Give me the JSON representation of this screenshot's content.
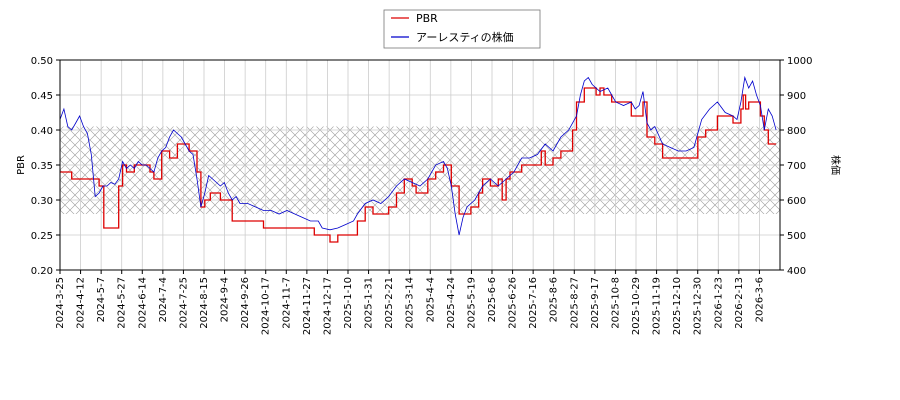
{
  "chart_data": {
    "type": "line",
    "legend_position": "top-center",
    "grid": true,
    "band": {
      "from": 0.28,
      "to": 0.405,
      "axis": "left"
    },
    "y_left": {
      "label": "PBR",
      "range": [
        0.2,
        0.5
      ],
      "ticks": [
        "0.20",
        "0.25",
        "0.30",
        "0.35",
        "0.40",
        "0.45",
        "0.50"
      ]
    },
    "y_right": {
      "label": "株価",
      "range": [
        400,
        1000
      ],
      "ticks": [
        "400",
        "500",
        "600",
        "700",
        "800",
        "900",
        "1000"
      ]
    },
    "x_ticks": [
      "2024-3-25",
      "2024-4-12",
      "2024-5-7",
      "2024-5-27",
      "2024-6-14",
      "2024-7-4",
      "2024-7-25",
      "2024-8-15",
      "2024-9-4",
      "2024-9-26",
      "2024-10-17",
      "2024-11-7",
      "2024-11-27",
      "2024-12-17",
      "2025-1-10",
      "2025-1-31",
      "2025-2-21",
      "2025-3-14",
      "2025-4-4",
      "2025-4-24",
      "2025-5-19",
      "2025-6-6",
      "2025-6-26",
      "2025-7-16",
      "2025-8-6",
      "2025-8-27",
      "2025-9-17",
      "2025-10-8",
      "2025-10-29",
      "2025-11-19",
      "2025-12-10",
      "2025-12-30",
      "2026-1-23",
      "2026-2-13",
      "2026-3-6"
    ],
    "series": [
      {
        "name": "PBR",
        "color": "#dd0000",
        "axis": "left",
        "points": [
          [
            0,
            0.34
          ],
          [
            1.5,
            0.33
          ],
          [
            4,
            0.33
          ],
          [
            5,
            0.32
          ],
          [
            5.6,
            0.26
          ],
          [
            7.5,
            0.32
          ],
          [
            8.0,
            0.35
          ],
          [
            8.5,
            0.34
          ],
          [
            9.5,
            0.35
          ],
          [
            11.5,
            0.34
          ],
          [
            12.0,
            0.33
          ],
          [
            13.0,
            0.37
          ],
          [
            14.0,
            0.36
          ],
          [
            15.0,
            0.38
          ],
          [
            16.5,
            0.37
          ],
          [
            17.5,
            0.34
          ],
          [
            18.0,
            0.29
          ],
          [
            18.5,
            0.3
          ],
          [
            19.2,
            0.31
          ],
          [
            20.5,
            0.3
          ],
          [
            22.0,
            0.27
          ],
          [
            25.0,
            0.27
          ],
          [
            26.0,
            0.26
          ],
          [
            29.0,
            0.26
          ],
          [
            32.0,
            0.26
          ],
          [
            32.5,
            0.25
          ],
          [
            34.0,
            0.25
          ],
          [
            34.5,
            0.24
          ],
          [
            35.0,
            0.24
          ],
          [
            35.5,
            0.25
          ],
          [
            37.0,
            0.25
          ],
          [
            38.0,
            0.27
          ],
          [
            39.0,
            0.29
          ],
          [
            40.0,
            0.28
          ],
          [
            42.0,
            0.29
          ],
          [
            43.0,
            0.31
          ],
          [
            44.0,
            0.33
          ],
          [
            45.0,
            0.32
          ],
          [
            45.5,
            0.31
          ],
          [
            46.5,
            0.31
          ],
          [
            47.0,
            0.33
          ],
          [
            48.0,
            0.34
          ],
          [
            49.0,
            0.35
          ],
          [
            50.0,
            0.32
          ],
          [
            51.0,
            0.28
          ],
          [
            51.5,
            0.28
          ],
          [
            52.5,
            0.29
          ],
          [
            53.5,
            0.31
          ],
          [
            54.0,
            0.33
          ],
          [
            55.0,
            0.32
          ],
          [
            56.0,
            0.33
          ],
          [
            56.5,
            0.3
          ],
          [
            57.0,
            0.33
          ],
          [
            57.5,
            0.34
          ],
          [
            59.0,
            0.35
          ],
          [
            60.5,
            0.35
          ],
          [
            61.5,
            0.37
          ],
          [
            62.0,
            0.35
          ],
          [
            63.0,
            0.36
          ],
          [
            64.0,
            0.37
          ],
          [
            65.5,
            0.4
          ],
          [
            66.0,
            0.44
          ],
          [
            66.5,
            0.44
          ],
          [
            67.0,
            0.46
          ],
          [
            68.5,
            0.45
          ],
          [
            69.0,
            0.46
          ],
          [
            69.5,
            0.45
          ],
          [
            70.5,
            0.44
          ],
          [
            72.0,
            0.44
          ],
          [
            73.0,
            0.42
          ],
          [
            74.0,
            0.42
          ],
          [
            74.5,
            0.44
          ],
          [
            75.0,
            0.39
          ],
          [
            76.0,
            0.38
          ],
          [
            77.0,
            0.36
          ],
          [
            79.0,
            0.36
          ],
          [
            81.0,
            0.36
          ],
          [
            81.5,
            0.39
          ],
          [
            82.5,
            0.4
          ],
          [
            83.5,
            0.4
          ],
          [
            84.0,
            0.42
          ],
          [
            85.5,
            0.42
          ],
          [
            86.0,
            0.41
          ],
          [
            87.0,
            0.43
          ],
          [
            87.3,
            0.45
          ],
          [
            87.6,
            0.43
          ],
          [
            88.0,
            0.44
          ],
          [
            89.5,
            0.42
          ],
          [
            90.0,
            0.4
          ],
          [
            90.5,
            0.38
          ],
          [
            91.5,
            0.38
          ]
        ]
      },
      {
        "name": "アーレスティの株価",
        "color": "#0000cc",
        "axis": "right",
        "points": [
          [
            0,
            830
          ],
          [
            0.5,
            860
          ],
          [
            1.0,
            810
          ],
          [
            1.5,
            800
          ],
          [
            2.0,
            820
          ],
          [
            2.5,
            840
          ],
          [
            3.0,
            810
          ],
          [
            3.5,
            790
          ],
          [
            4.0,
            730
          ],
          [
            4.5,
            610
          ],
          [
            5.0,
            620
          ],
          [
            5.5,
            640
          ],
          [
            6.0,
            640
          ],
          [
            6.5,
            650
          ],
          [
            7.0,
            645
          ],
          [
            7.5,
            660
          ],
          [
            8.0,
            710
          ],
          [
            8.5,
            690
          ],
          [
            9.0,
            700
          ],
          [
            9.5,
            690
          ],
          [
            10.0,
            710
          ],
          [
            10.5,
            700
          ],
          [
            11.0,
            700
          ],
          [
            11.5,
            690
          ],
          [
            12.0,
            680
          ],
          [
            12.5,
            720
          ],
          [
            13.0,
            740
          ],
          [
            13.5,
            750
          ],
          [
            14.0,
            780
          ],
          [
            14.5,
            800
          ],
          [
            15.0,
            790
          ],
          [
            15.5,
            780
          ],
          [
            16.0,
            760
          ],
          [
            16.5,
            740
          ],
          [
            17.0,
            730
          ],
          [
            17.5,
            660
          ],
          [
            18.0,
            580
          ],
          [
            18.5,
            620
          ],
          [
            19.0,
            670
          ],
          [
            19.5,
            660
          ],
          [
            20.0,
            650
          ],
          [
            20.5,
            640
          ],
          [
            21.0,
            650
          ],
          [
            21.5,
            620
          ],
          [
            22.0,
            600
          ],
          [
            22.5,
            610
          ],
          [
            23.0,
            590
          ],
          [
            24.0,
            590
          ],
          [
            25.0,
            580
          ],
          [
            26.0,
            570
          ],
          [
            27.0,
            570
          ],
          [
            28.0,
            560
          ],
          [
            29.0,
            570
          ],
          [
            30.0,
            560
          ],
          [
            31.0,
            550
          ],
          [
            32.0,
            540
          ],
          [
            33.0,
            540
          ],
          [
            33.5,
            520
          ],
          [
            34.5,
            515
          ],
          [
            35.5,
            520
          ],
          [
            36.5,
            530
          ],
          [
            37.5,
            540
          ],
          [
            38.0,
            560
          ],
          [
            39.0,
            590
          ],
          [
            40.0,
            600
          ],
          [
            41.0,
            590
          ],
          [
            42.0,
            610
          ],
          [
            43.0,
            640
          ],
          [
            44.0,
            660
          ],
          [
            45.0,
            650
          ],
          [
            46.0,
            640
          ],
          [
            47.0,
            660
          ],
          [
            48.0,
            700
          ],
          [
            49.0,
            710
          ],
          [
            49.5,
            690
          ],
          [
            50.0,
            640
          ],
          [
            50.5,
            560
          ],
          [
            51.0,
            500
          ],
          [
            51.5,
            550
          ],
          [
            52.0,
            580
          ],
          [
            53.0,
            600
          ],
          [
            54.0,
            640
          ],
          [
            55.0,
            660
          ],
          [
            56.0,
            640
          ],
          [
            57.0,
            660
          ],
          [
            58.0,
            680
          ],
          [
            59.0,
            720
          ],
          [
            60.0,
            720
          ],
          [
            61.0,
            730
          ],
          [
            62.0,
            760
          ],
          [
            63.0,
            740
          ],
          [
            64.0,
            780
          ],
          [
            65.0,
            800
          ],
          [
            66.0,
            840
          ],
          [
            66.5,
            900
          ],
          [
            67.0,
            940
          ],
          [
            67.5,
            950
          ],
          [
            68.0,
            930
          ],
          [
            69.0,
            910
          ],
          [
            70.0,
            920
          ],
          [
            70.5,
            900
          ],
          [
            71.0,
            880
          ],
          [
            72.0,
            870
          ],
          [
            73.0,
            880
          ],
          [
            73.5,
            860
          ],
          [
            74.0,
            870
          ],
          [
            74.5,
            910
          ],
          [
            75.0,
            820
          ],
          [
            75.5,
            800
          ],
          [
            76.0,
            810
          ],
          [
            77.0,
            760
          ],
          [
            78.0,
            750
          ],
          [
            79.0,
            740
          ],
          [
            80.0,
            740
          ],
          [
            81.0,
            750
          ],
          [
            81.5,
            790
          ],
          [
            82.0,
            830
          ],
          [
            83.0,
            860
          ],
          [
            84.0,
            880
          ],
          [
            85.0,
            850
          ],
          [
            86.0,
            840
          ],
          [
            86.5,
            830
          ],
          [
            87.0,
            880
          ],
          [
            87.5,
            950
          ],
          [
            88.0,
            920
          ],
          [
            88.5,
            940
          ],
          [
            89.0,
            900
          ],
          [
            89.5,
            870
          ],
          [
            90.0,
            800
          ],
          [
            90.5,
            860
          ],
          [
            91.0,
            840
          ],
          [
            91.5,
            800
          ]
        ]
      }
    ]
  }
}
